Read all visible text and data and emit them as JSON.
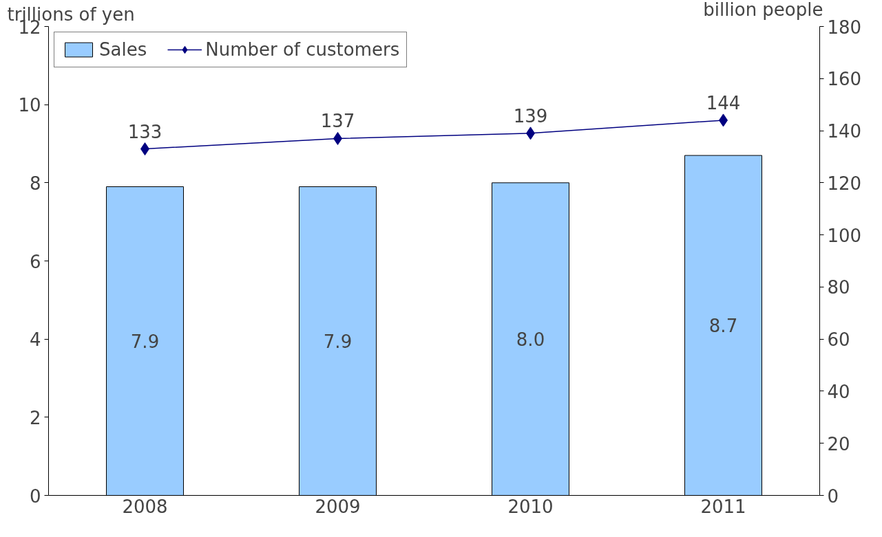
{
  "chart_data": {
    "type": "bar",
    "ylabel": "trillions of yen",
    "y2label": "billion people",
    "categories": [
      "2008",
      "2009",
      "2010",
      "2011"
    ],
    "series": [
      {
        "name": "Sales",
        "color": "#99ccff",
        "values": [
          7.9,
          7.9,
          8.0,
          8.7
        ],
        "value_labels": [
          "7.9",
          "7.9",
          "8.0",
          "8.7"
        ]
      },
      {
        "name": "Number of customers",
        "type": "line",
        "axis": "y2",
        "color": "#000080",
        "marker": "diamond",
        "values": [
          133,
          137,
          139,
          144
        ],
        "value_labels": [
          "133",
          "137",
          "139",
          "144"
        ]
      }
    ],
    "ylim": [
      0,
      12
    ],
    "yticks": [
      0,
      2,
      4,
      6,
      8,
      10,
      12
    ],
    "y2lim": [
      0,
      180
    ],
    "y2ticks": [
      0,
      20,
      40,
      60,
      80,
      100,
      120,
      140,
      160,
      180
    ],
    "legend": "top left",
    "grid": false
  }
}
